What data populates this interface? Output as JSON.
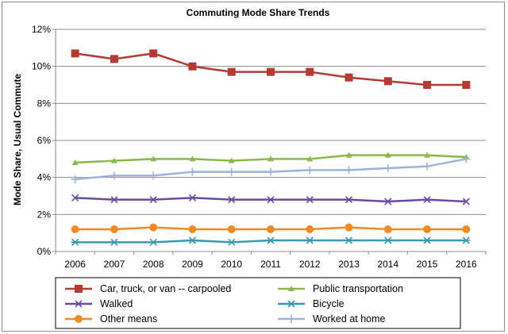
{
  "chart_data": {
    "type": "line",
    "title": "Commuting Mode Share Trends",
    "xlabel": "",
    "ylabel": "Mode Share, Usual Commute",
    "x": [
      "2006",
      "2007",
      "2008",
      "2009",
      "2010",
      "2011",
      "2012",
      "2013",
      "2014",
      "2015",
      "2016"
    ],
    "ylim": [
      0,
      12
    ],
    "yticks": [
      0,
      2,
      4,
      6,
      8,
      10,
      12
    ],
    "ytick_labels": [
      "0%",
      "2%",
      "4%",
      "6%",
      "8%",
      "10%",
      "12%"
    ],
    "grid": "horizontal",
    "legend_placement": "bottom",
    "series": [
      {
        "name": "Car, truck, or van -- carpooled",
        "color": "#b23b33",
        "marker": "square",
        "values": [
          10.7,
          10.4,
          10.7,
          10.0,
          9.7,
          9.7,
          9.7,
          9.4,
          9.2,
          9.0,
          9.0
        ]
      },
      {
        "name": "Public transportation",
        "color": "#8cb84b",
        "marker": "triangle",
        "values": [
          4.8,
          4.9,
          5.0,
          5.0,
          4.9,
          5.0,
          5.0,
          5.2,
          5.2,
          5.2,
          5.1
        ]
      },
      {
        "name": "Walked",
        "color": "#6c4a9e",
        "marker": "x",
        "values": [
          2.9,
          2.8,
          2.8,
          2.9,
          2.8,
          2.8,
          2.8,
          2.8,
          2.7,
          2.8,
          2.7
        ]
      },
      {
        "name": "Bicycle",
        "color": "#3c98b0",
        "marker": "star",
        "values": [
          0.5,
          0.5,
          0.5,
          0.6,
          0.5,
          0.6,
          0.6,
          0.6,
          0.6,
          0.6,
          0.6
        ]
      },
      {
        "name": "Other means",
        "color": "#f08a24",
        "marker": "circle",
        "values": [
          1.2,
          1.2,
          1.3,
          1.2,
          1.2,
          1.2,
          1.2,
          1.3,
          1.2,
          1.2,
          1.2
        ]
      },
      {
        "name": "Worked at home",
        "color": "#9db3dc",
        "marker": "plus",
        "values": [
          3.9,
          4.1,
          4.1,
          4.3,
          4.3,
          4.3,
          4.4,
          4.4,
          4.5,
          4.6,
          5.0
        ]
      }
    ]
  }
}
